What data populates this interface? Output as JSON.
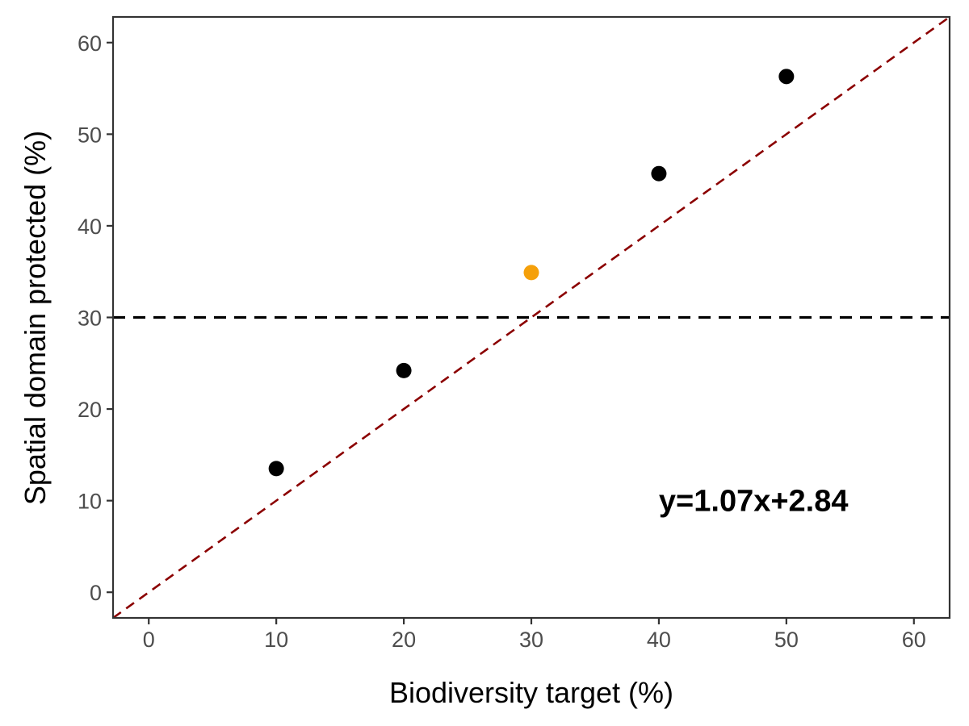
{
  "chart_data": {
    "type": "scatter",
    "title": "",
    "xlabel": "Biodiversity target (%)",
    "ylabel": "Spatial domain protected (%)",
    "xlim": [
      -2.8,
      62.8
    ],
    "ylim": [
      -2.8,
      62.8
    ],
    "x_ticks": [
      0,
      10,
      20,
      30,
      40,
      50,
      60
    ],
    "y_ticks": [
      0,
      10,
      20,
      30,
      40,
      50,
      60
    ],
    "grid": false,
    "legend": "none",
    "points": [
      {
        "x": 10,
        "y": 13.5,
        "color": "#000000"
      },
      {
        "x": 20,
        "y": 24.2,
        "color": "#000000"
      },
      {
        "x": 30,
        "y": 34.9,
        "color": "#f5a00a"
      },
      {
        "x": 40,
        "y": 45.7,
        "color": "#000000"
      },
      {
        "x": 50,
        "y": 56.3,
        "color": "#000000"
      }
    ],
    "reference_lines": [
      {
        "kind": "horizontal",
        "y": 30,
        "color": "#000000",
        "dash": "dashed"
      },
      {
        "kind": "identity",
        "slope": 1,
        "intercept": 0,
        "color": "#8b0000",
        "dash": "dashed"
      }
    ],
    "annotations": [
      {
        "text": "y=1.07x+2.84",
        "x": 40,
        "y": 10
      }
    ]
  }
}
